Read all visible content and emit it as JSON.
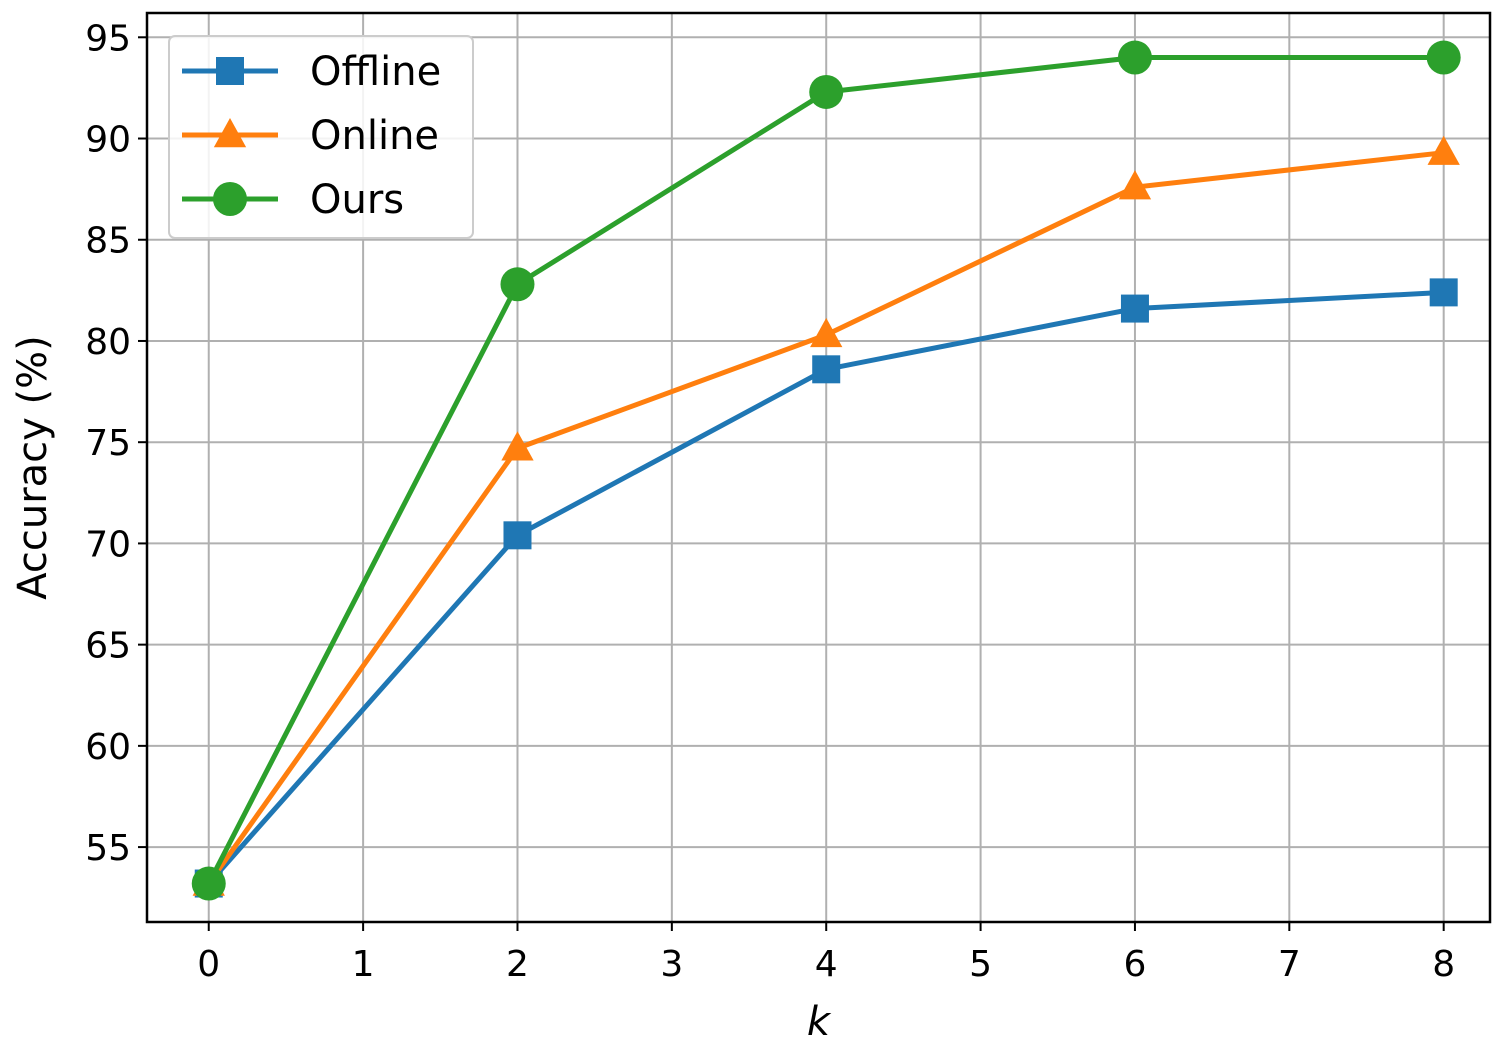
{
  "chart_data": {
    "type": "line",
    "xlabel": "k",
    "ylabel": "Accuracy (%)",
    "xlim": [
      -0.4,
      8.3
    ],
    "ylim": [
      51.3,
      96.2
    ],
    "xticks": [
      0,
      1,
      2,
      3,
      4,
      5,
      6,
      7,
      8
    ],
    "yticks": [
      55,
      60,
      65,
      70,
      75,
      80,
      85,
      90,
      95
    ],
    "grid": true,
    "legend_position": "top-left",
    "x": [
      0,
      2,
      4,
      6,
      8
    ],
    "series": [
      {
        "name": "Offline",
        "values": [
          53.2,
          70.4,
          78.6,
          81.6,
          82.4
        ],
        "color": "#1f77b4",
        "marker": "square"
      },
      {
        "name": "Online",
        "values": [
          53.2,
          74.7,
          80.3,
          87.6,
          89.3
        ],
        "color": "#ff7f0e",
        "marker": "triangle"
      },
      {
        "name": "Ours",
        "values": [
          53.2,
          82.8,
          92.3,
          94.0,
          94.0
        ],
        "color": "#2ca02c",
        "marker": "circle"
      }
    ]
  }
}
